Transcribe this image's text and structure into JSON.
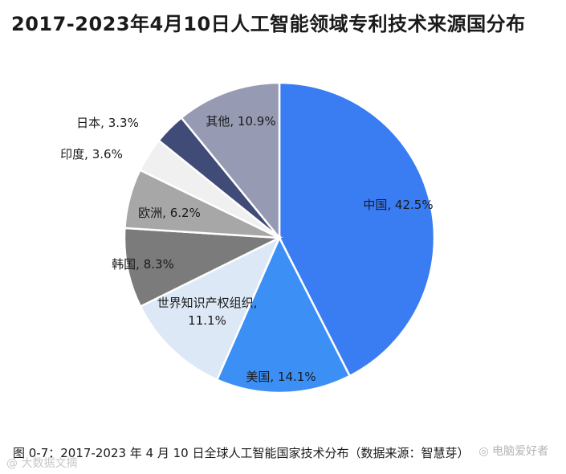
{
  "chart_data": {
    "type": "pie",
    "title": "2017-2023年4月10日人工智能领域专利技术来源国分布",
    "slices": [
      {
        "label": "中国",
        "value": 42.5,
        "display": "中国, 42.5%",
        "color": "#3a7cf2"
      },
      {
        "label": "美国",
        "value": 14.1,
        "display": "美国, 14.1%",
        "color": "#3c8ff5"
      },
      {
        "label": "世界知识产权组织",
        "value": 11.1,
        "display": "世界知识产权组织, 11.1%",
        "color": "#dde8f6"
      },
      {
        "label": "韩国",
        "value": 8.3,
        "display": "韩国, 8.3%",
        "color": "#7b7b7b"
      },
      {
        "label": "欧洲",
        "value": 6.2,
        "display": "欧洲, 6.2%",
        "color": "#a7a7a7"
      },
      {
        "label": "印度",
        "value": 3.6,
        "display": "印度, 3.6%",
        "color": "#f0f0f0"
      },
      {
        "label": "日本",
        "value": 3.3,
        "display": "日本, 3.3%",
        "color": "#414b78"
      },
      {
        "label": "其他",
        "value": 10.9,
        "display": "其他, 10.9%",
        "color": "#969ab2"
      }
    ],
    "start_angle_deg": 0,
    "direction": "clockwise"
  },
  "caption": "图 0-7：2017-2023 年 4 月 10 日全球人工智能国家技术分布（数据来源：智慧芽）",
  "watermark_left": "@ 大数据文摘",
  "watermark_right": "◎ 电脑爱好者"
}
